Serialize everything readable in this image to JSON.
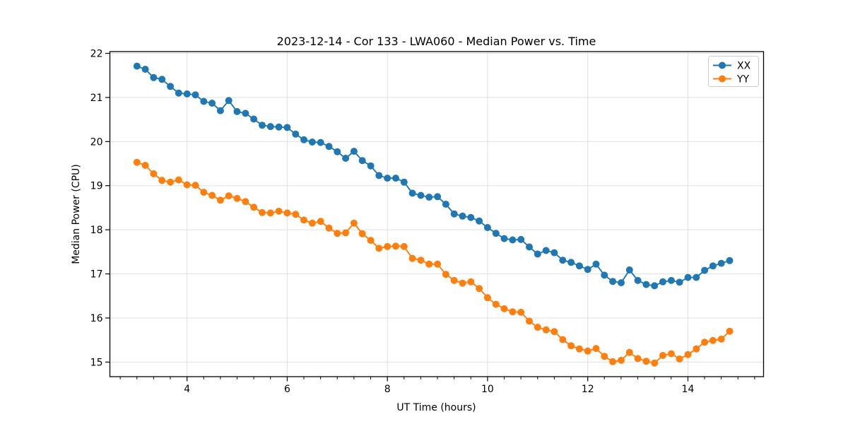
{
  "chart_data": {
    "type": "line",
    "title": "2023-12-14 - Cor 133 - LWA060 - Median Power vs. Time",
    "xlabel": "UT Time (hours)",
    "ylabel": "Median Power (CPU)",
    "xlim": [
      2.46,
      15.51
    ],
    "ylim": [
      14.67,
      22.04
    ],
    "xticks": [
      4,
      6,
      8,
      10,
      12,
      14
    ],
    "yticks": [
      15,
      16,
      17,
      18,
      19,
      20,
      21,
      22
    ],
    "x_minor_tick_interval": 0.3333,
    "grid": true,
    "legend": {
      "position": "upper right"
    },
    "x": [
      3.0,
      3.167,
      3.333,
      3.5,
      3.667,
      3.833,
      4.0,
      4.167,
      4.333,
      4.5,
      4.667,
      4.833,
      5.0,
      5.167,
      5.333,
      5.5,
      5.667,
      5.833,
      6.0,
      6.167,
      6.333,
      6.5,
      6.667,
      6.833,
      7.0,
      7.167,
      7.333,
      7.5,
      7.667,
      7.833,
      8.0,
      8.167,
      8.333,
      8.5,
      8.667,
      8.833,
      9.0,
      9.167,
      9.333,
      9.5,
      9.667,
      9.833,
      10.0,
      10.167,
      10.333,
      10.5,
      10.667,
      10.833,
      11.0,
      11.167,
      11.333,
      11.5,
      11.667,
      11.833,
      12.0,
      12.167,
      12.333,
      12.5,
      12.667,
      12.833,
      13.0,
      13.167,
      13.333,
      13.5,
      13.667,
      13.833,
      14.0,
      14.167,
      14.333,
      14.5,
      14.667,
      14.833
    ],
    "series": [
      {
        "name": "XX",
        "color": "#1f77b4",
        "marker": "circle",
        "values": [
          21.71,
          21.64,
          21.45,
          21.41,
          21.25,
          21.1,
          21.08,
          21.06,
          20.91,
          20.87,
          20.7,
          20.93,
          20.68,
          20.64,
          20.51,
          20.37,
          20.34,
          20.33,
          20.32,
          20.17,
          20.04,
          19.99,
          19.98,
          19.89,
          19.77,
          19.62,
          19.78,
          19.57,
          19.45,
          19.23,
          19.17,
          19.17,
          19.08,
          18.83,
          18.78,
          18.74,
          18.75,
          18.58,
          18.36,
          18.31,
          18.28,
          18.2,
          18.05,
          17.92,
          17.8,
          17.77,
          17.78,
          17.61,
          17.45,
          17.53,
          17.48,
          17.31,
          17.26,
          17.18,
          17.1,
          17.22,
          16.97,
          16.83,
          16.8,
          17.09,
          16.85,
          16.76,
          16.73,
          16.82,
          16.85,
          16.81,
          16.92,
          16.92,
          17.08,
          17.18,
          17.24,
          17.3
        ]
      },
      {
        "name": "YY",
        "color": "#ff7f0e",
        "marker": "circle",
        "values": [
          19.53,
          19.46,
          19.27,
          19.12,
          19.08,
          19.13,
          19.02,
          19.01,
          18.85,
          18.78,
          18.67,
          18.77,
          18.71,
          18.64,
          18.51,
          18.39,
          18.38,
          18.42,
          18.38,
          18.35,
          18.22,
          18.15,
          18.19,
          18.04,
          17.92,
          17.93,
          18.15,
          17.91,
          17.76,
          17.58,
          17.62,
          17.63,
          17.62,
          17.35,
          17.31,
          17.22,
          17.22,
          16.99,
          16.85,
          16.79,
          16.82,
          16.67,
          16.46,
          16.31,
          16.21,
          16.14,
          16.13,
          15.93,
          15.79,
          15.73,
          15.69,
          15.51,
          15.37,
          15.3,
          15.25,
          15.31,
          15.13,
          15.01,
          15.04,
          15.22,
          15.08,
          15.02,
          14.98,
          15.15,
          15.19,
          15.07,
          15.17,
          15.3,
          15.45,
          15.49,
          15.52,
          15.7
        ]
      }
    ]
  }
}
